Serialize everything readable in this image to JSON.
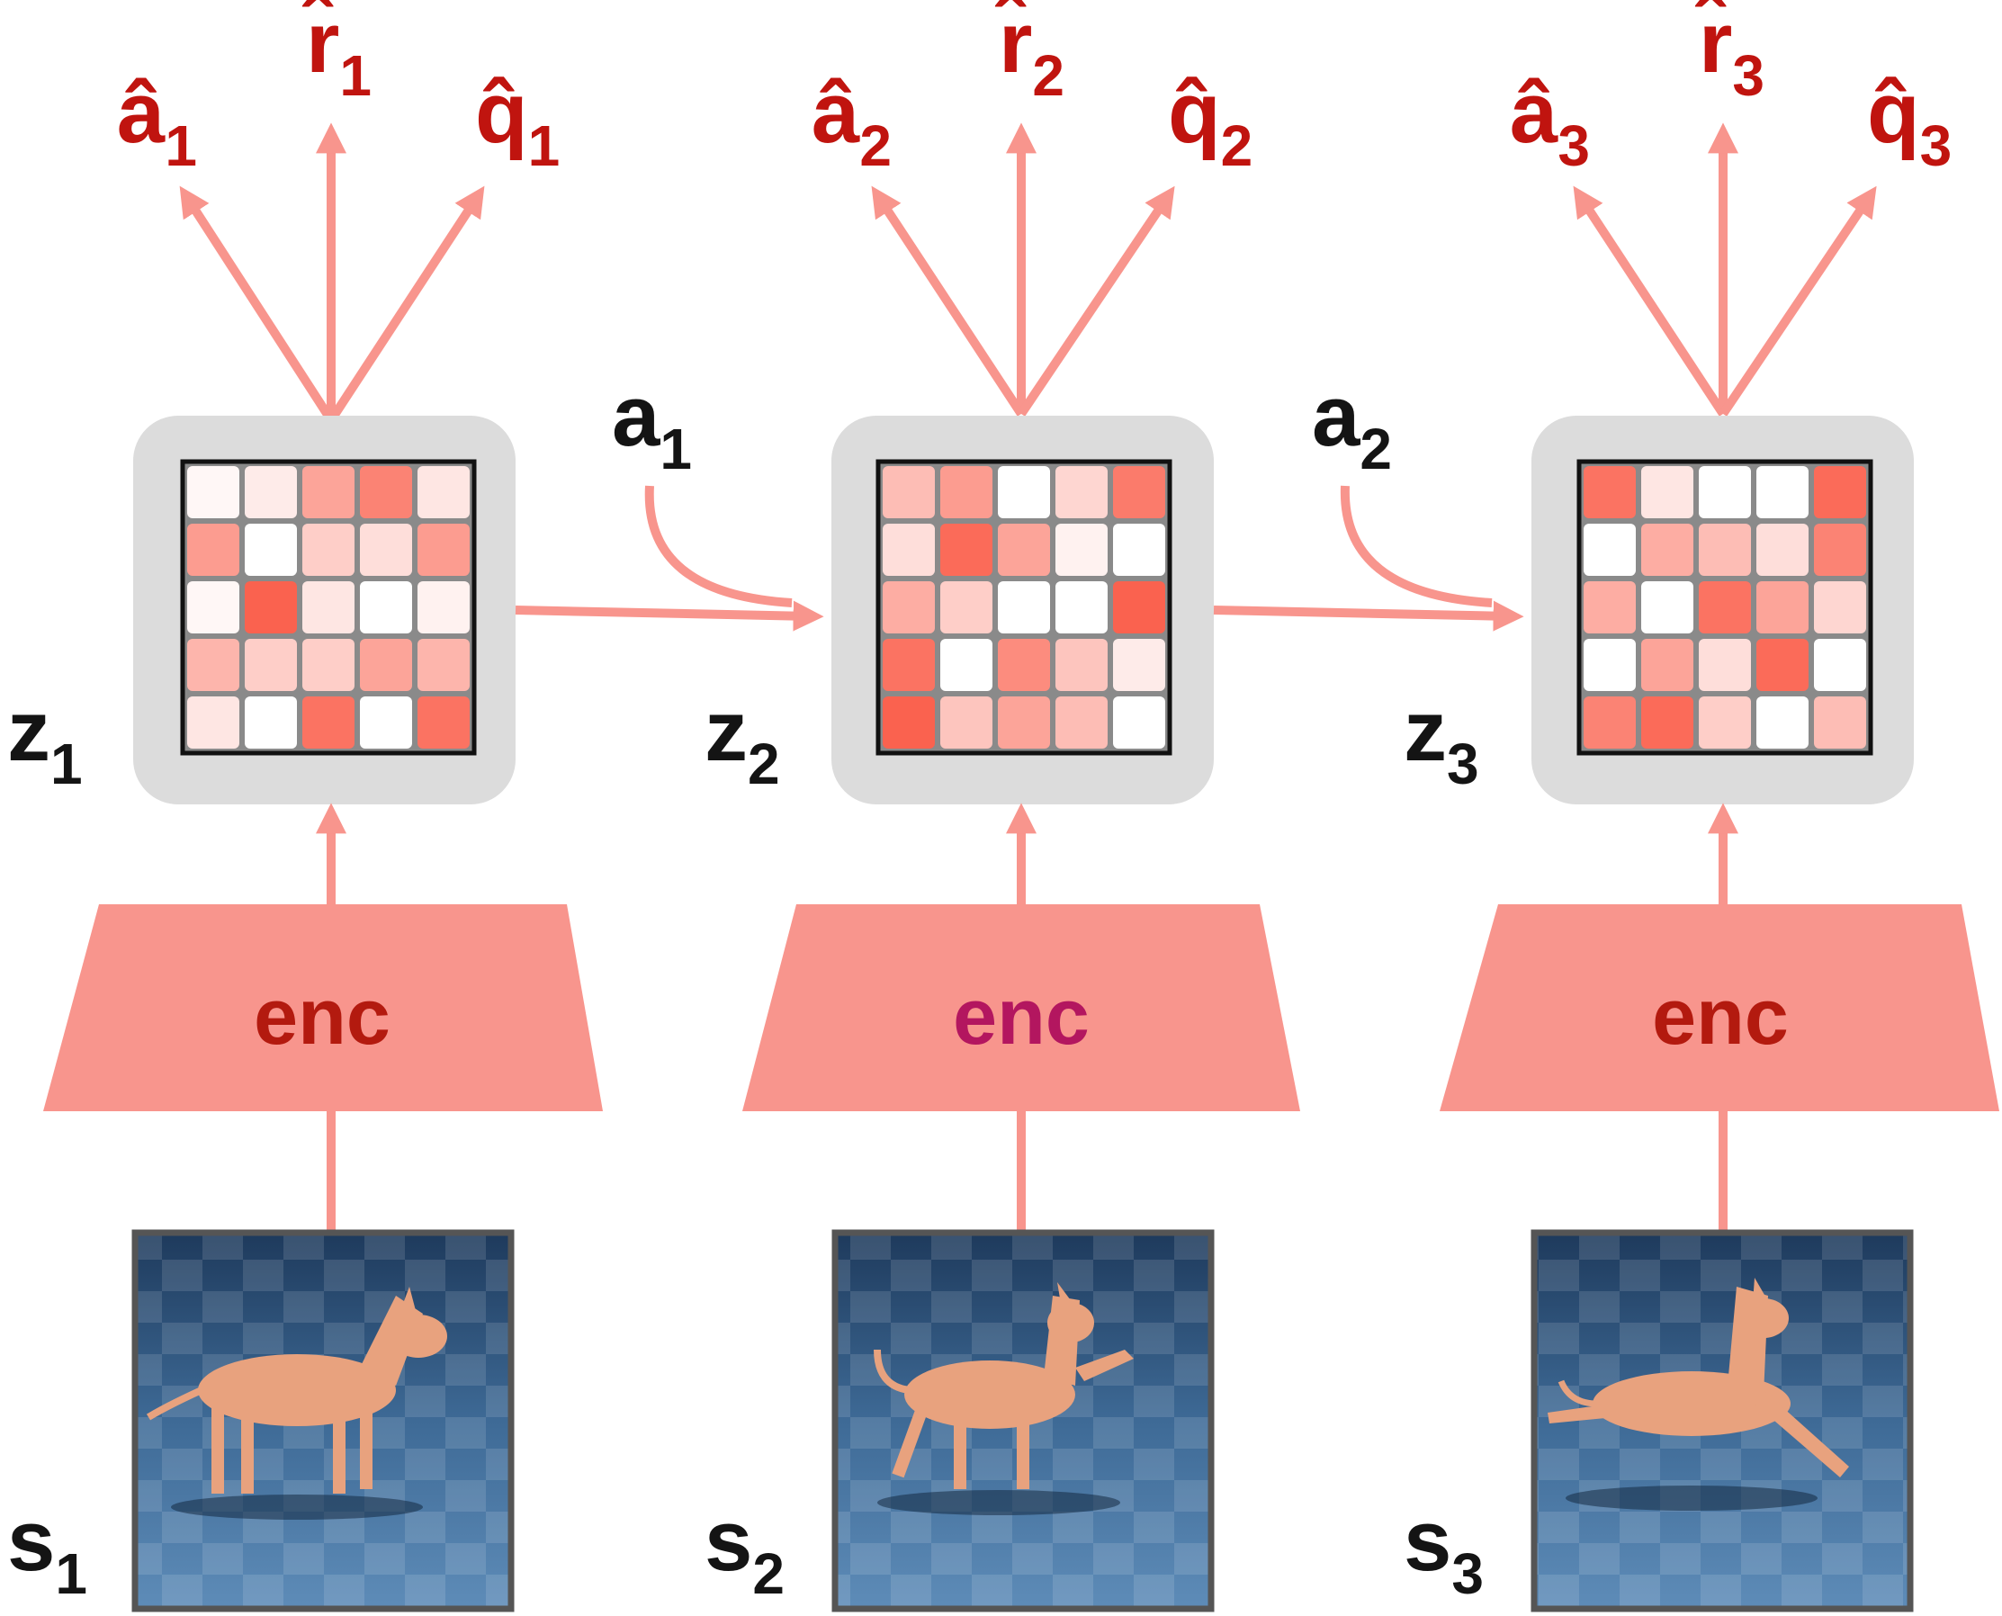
{
  "colors": {
    "arrow": "#f8958d",
    "enc_fill": "#f8958d",
    "enc_text": "#b31a0f",
    "enc_text_highlight": "#b3165f",
    "output_label": "#c0140f",
    "black_label": "#141414",
    "latent_bg": "#dcdcdc",
    "frame_border": "#555555",
    "floor": "#3e6a96",
    "dog": "#e8a27e"
  },
  "steps": [
    {
      "output_labels": [
        {
          "base": "â",
          "sub": "1"
        },
        {
          "base": "r̂",
          "sub": "1"
        },
        {
          "base": "q̂",
          "sub": "1"
        }
      ],
      "latent_label": {
        "base": "z",
        "sub": "1"
      },
      "state_label": {
        "base": "s",
        "sub": "1"
      },
      "encoder_label": "enc",
      "encoder_highlight": false,
      "grid": [
        [
          0.05,
          0.12,
          0.55,
          0.75,
          0.15
        ],
        [
          0.6,
          0.0,
          0.3,
          0.2,
          0.6
        ],
        [
          0.05,
          0.95,
          0.15,
          0.0,
          0.08
        ],
        [
          0.45,
          0.3,
          0.3,
          0.55,
          0.45
        ],
        [
          0.15,
          0.0,
          0.85,
          0.0,
          0.85
        ]
      ]
    },
    {
      "output_labels": [
        {
          "base": "â",
          "sub": "2"
        },
        {
          "base": "r̂",
          "sub": "2"
        },
        {
          "base": "q̂",
          "sub": "2"
        }
      ],
      "latent_label": {
        "base": "z",
        "sub": "2"
      },
      "state_label": {
        "base": "s",
        "sub": "2"
      },
      "encoder_label": "enc",
      "encoder_highlight": true,
      "grid": [
        [
          0.4,
          0.6,
          0.0,
          0.25,
          0.8
        ],
        [
          0.2,
          0.9,
          0.55,
          0.08,
          0.0
        ],
        [
          0.5,
          0.3,
          0.0,
          0.0,
          0.95
        ],
        [
          0.85,
          0.0,
          0.7,
          0.35,
          0.12
        ],
        [
          0.95,
          0.35,
          0.55,
          0.4,
          0.0
        ]
      ]
    },
    {
      "output_labels": [
        {
          "base": "â",
          "sub": "3"
        },
        {
          "base": "r̂",
          "sub": "3"
        },
        {
          "base": "q̂",
          "sub": "3"
        }
      ],
      "latent_label": {
        "base": "z",
        "sub": "3"
      },
      "state_label": {
        "base": "s",
        "sub": "3"
      },
      "encoder_label": "enc",
      "encoder_highlight": false,
      "grid": [
        [
          0.85,
          0.15,
          0.0,
          0.0,
          0.9
        ],
        [
          0.0,
          0.5,
          0.4,
          0.2,
          0.75
        ],
        [
          0.5,
          0.0,
          0.85,
          0.55,
          0.25
        ],
        [
          0.0,
          0.55,
          0.2,
          0.9,
          0.0
        ],
        [
          0.75,
          0.9,
          0.3,
          0.0,
          0.4
        ]
      ]
    }
  ],
  "actions": [
    {
      "base": "a",
      "sub": "1"
    },
    {
      "base": "a",
      "sub": "2"
    }
  ]
}
